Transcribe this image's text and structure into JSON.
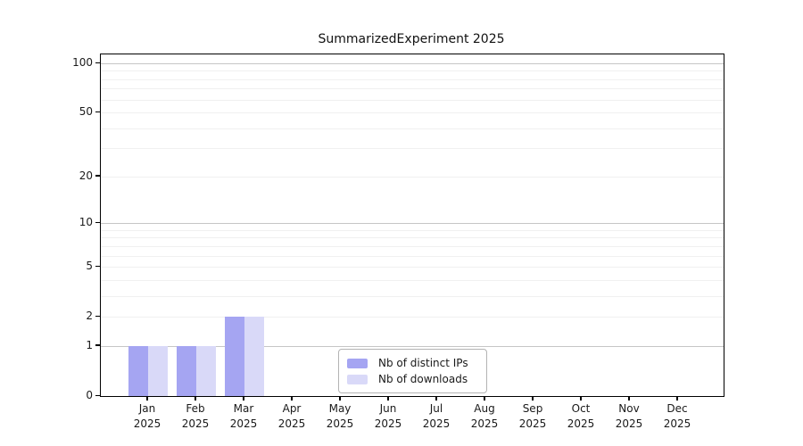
{
  "page": {
    "background": "#ffffff"
  },
  "chart_data": {
    "type": "bar",
    "title": "SummarizedExperiment 2025",
    "categories": [
      "Jan 2025",
      "Feb 2025",
      "Mar 2025",
      "Apr 2025",
      "May 2025",
      "Jun 2025",
      "Jul 2025",
      "Aug 2025",
      "Sep 2025",
      "Oct 2025",
      "Nov 2025",
      "Dec 2025"
    ],
    "series": [
      {
        "name": "Nb of distinct IPs",
        "color": "#a5a5f2",
        "values": [
          1,
          1,
          2,
          0,
          0,
          0,
          0,
          0,
          0,
          0,
          0,
          0
        ]
      },
      {
        "name": "Nb of downloads",
        "color": "#d9d9f8",
        "values": [
          1,
          1,
          2,
          0,
          0,
          0,
          0,
          0,
          0,
          0,
          0,
          0
        ]
      }
    ],
    "xlabel": "",
    "ylabel": "",
    "yscale": "log1p",
    "ylim": [
      0,
      113
    ],
    "ytick_labels": [
      0,
      1,
      2,
      5,
      10,
      20,
      50,
      100
    ],
    "grid_major_ticks": [
      1,
      10,
      100
    ],
    "grid_minor_ticks": [
      2,
      3,
      4,
      5,
      6,
      7,
      8,
      9,
      20,
      30,
      40,
      50,
      60,
      70,
      80,
      90
    ],
    "grid": "horizontal",
    "legend_position": "inside lower-center",
    "colors": {
      "grid_major": "#c6c6c6",
      "grid_minor": "#f0f0f0",
      "axis": "#000000",
      "text": "#1a1a1a"
    }
  }
}
